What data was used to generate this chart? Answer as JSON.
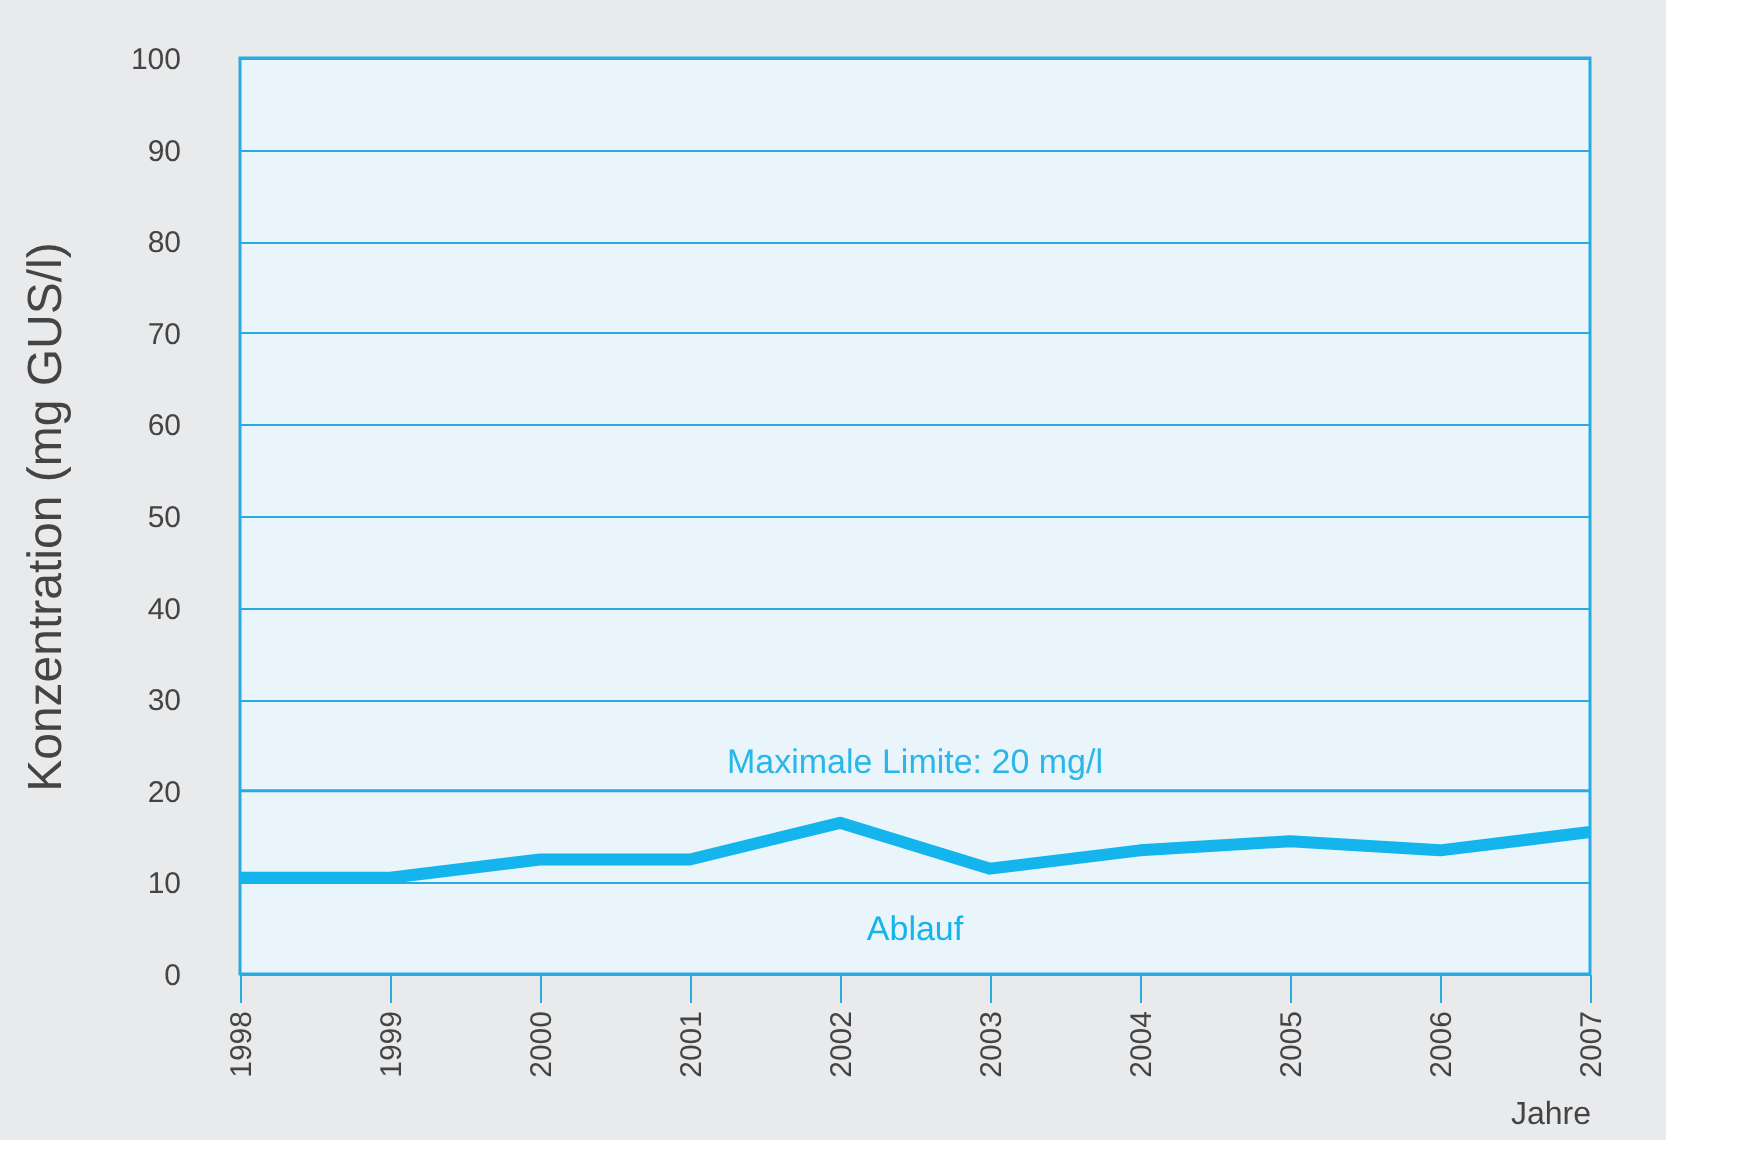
{
  "chart_data": {
    "type": "line",
    "xlabel": "Jahre",
    "ylabel": "Konzentration (mg GUS/l)",
    "categories": [
      "1998",
      "1999",
      "2000",
      "2001",
      "2002",
      "2003",
      "2004",
      "2005",
      "2006",
      "2007"
    ],
    "series": [
      {
        "name": "Ablauf",
        "color": "#14b4ec",
        "values": [
          10.5,
          10.5,
          12.5,
          12.5,
          16.5,
          11.5,
          13.5,
          14.5,
          13.5,
          15.5
        ]
      }
    ],
    "ylim": [
      0,
      100
    ],
    "yticks": [
      0,
      10,
      20,
      30,
      40,
      50,
      60,
      70,
      80,
      90,
      100
    ],
    "ref_lines": [
      {
        "axis": "y",
        "value": 20,
        "label": "Maximale Limite: 20 mg/l",
        "color": "#29abe2"
      }
    ],
    "grid": "y",
    "legend": false,
    "marker": "none",
    "line_style": "solid"
  }
}
